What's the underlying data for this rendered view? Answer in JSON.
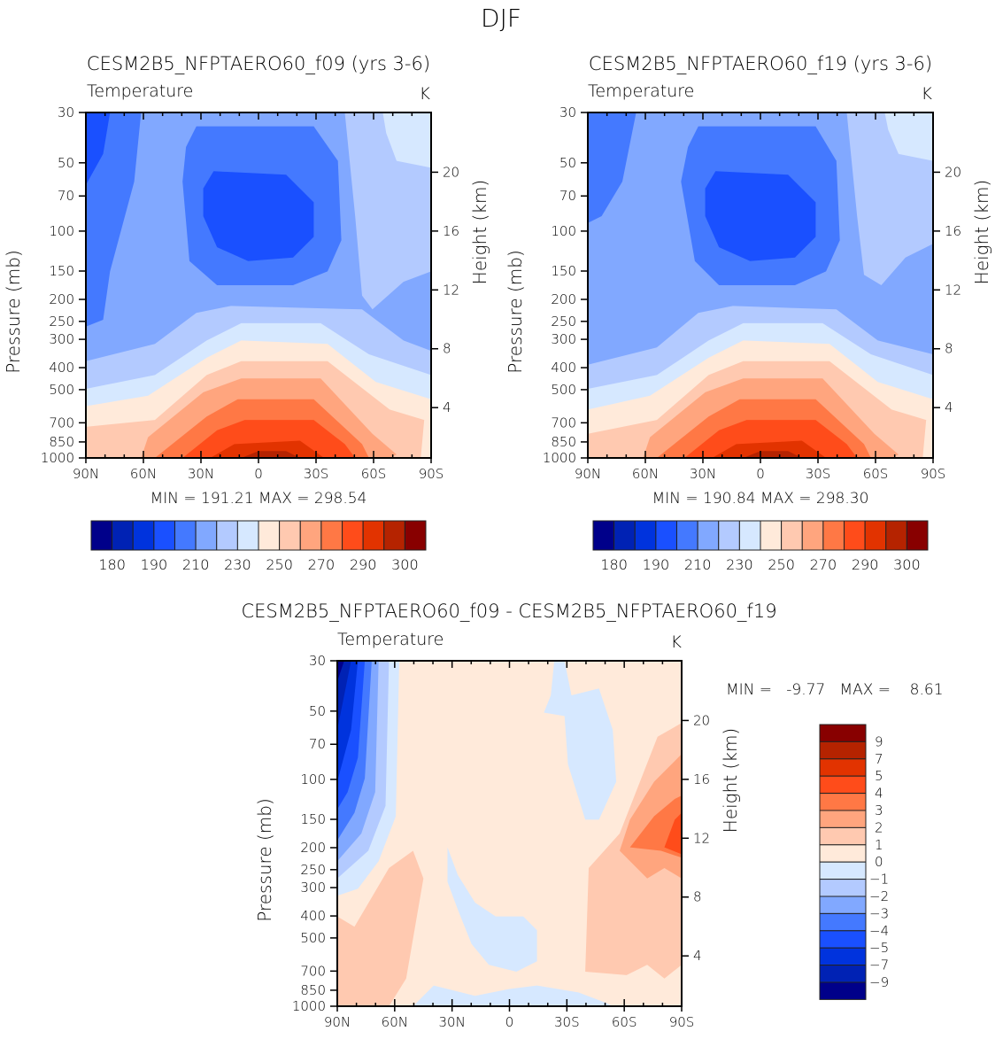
{
  "page_title": "DJF",
  "chart_data": [
    {
      "type": "heatmap",
      "id": "f09",
      "title": "CESM2B5_NFPTAERO60_f09 (yrs 3-6)",
      "variable": "Temperature",
      "units": "K",
      "ylabel": "Pressure (mb)",
      "ylabel_right": "Height (km)",
      "x_ticks": [
        "90N",
        "60N",
        "30N",
        "0",
        "30S",
        "60S",
        "90S"
      ],
      "y_ticks": [
        "30",
        "50",
        "70",
        "100",
        "150",
        "200",
        "250",
        "300",
        "400",
        "500",
        "700",
        "850",
        "1000"
      ],
      "y_right_ticks": [
        "20",
        "16",
        "12",
        "8",
        "4"
      ],
      "ylim_mb": [
        1000,
        30
      ],
      "xlim": [
        "90N",
        "90S"
      ],
      "stats": "MIN = 191.21   MAX = 298.54",
      "min": 191.21,
      "max": 298.54,
      "colorbar": {
        "orientation": "horizontal",
        "levels": [
          180,
          185,
          190,
          200,
          210,
          220,
          230,
          240,
          250,
          260,
          270,
          280,
          290,
          295,
          300
        ],
        "labels": [
          "180",
          "190",
          "210",
          "230",
          "250",
          "270",
          "290",
          "300"
        ],
        "colors": [
          "#00008a",
          "#0022b4",
          "#0033dd",
          "#1a50ff",
          "#4479ff",
          "#81a8ff",
          "#b3caff",
          "#d6e8ff",
          "#ffeada",
          "#ffc9b0",
          "#ffa57e",
          "#ff7845",
          "#ff4c1a",
          "#e23300",
          "#b52300",
          "#880000"
        ]
      }
    },
    {
      "type": "heatmap",
      "id": "f19",
      "title": "CESM2B5_NFPTAERO60_f19 (yrs 3-6)",
      "variable": "Temperature",
      "units": "K",
      "ylabel": "Pressure (mb)",
      "ylabel_right": "Height (km)",
      "x_ticks": [
        "90N",
        "60N",
        "30N",
        "0",
        "30S",
        "60S",
        "90S"
      ],
      "y_ticks": [
        "30",
        "50",
        "70",
        "100",
        "150",
        "200",
        "250",
        "300",
        "400",
        "500",
        "700",
        "850",
        "1000"
      ],
      "y_right_ticks": [
        "20",
        "16",
        "12",
        "8",
        "4"
      ],
      "ylim_mb": [
        1000,
        30
      ],
      "xlim": [
        "90N",
        "90S"
      ],
      "stats": "MIN = 190.84   MAX = 298.30",
      "min": 190.84,
      "max": 298.3,
      "colorbar": {
        "orientation": "horizontal",
        "levels": [
          180,
          185,
          190,
          200,
          210,
          220,
          230,
          240,
          250,
          260,
          270,
          280,
          290,
          295,
          300
        ],
        "labels": [
          "180",
          "190",
          "210",
          "230",
          "250",
          "270",
          "290",
          "300"
        ],
        "colors": [
          "#00008a",
          "#0022b4",
          "#0033dd",
          "#1a50ff",
          "#4479ff",
          "#81a8ff",
          "#b3caff",
          "#d6e8ff",
          "#ffeada",
          "#ffc9b0",
          "#ffa57e",
          "#ff7845",
          "#ff4c1a",
          "#e23300",
          "#b52300",
          "#880000"
        ]
      }
    },
    {
      "type": "heatmap",
      "id": "diff",
      "title": "CESM2B5_NFPTAERO60_f09 - CESM2B5_NFPTAERO60_f19",
      "variable": "Temperature",
      "units": "K",
      "ylabel": "Pressure (mb)",
      "ylabel_right": "Height (km)",
      "x_ticks": [
        "90N",
        "60N",
        "30N",
        "0",
        "30S",
        "60S",
        "90S"
      ],
      "y_ticks": [
        "30",
        "50",
        "70",
        "100",
        "150",
        "200",
        "250",
        "300",
        "400",
        "500",
        "700",
        "850",
        "1000"
      ],
      "y_right_ticks": [
        "20",
        "16",
        "12",
        "8",
        "4"
      ],
      "ylim_mb": [
        1000,
        30
      ],
      "xlim": [
        "90N",
        "90S"
      ],
      "stats": "MIN =   -9.77   MAX =    8.61",
      "min": -9.77,
      "max": 8.61,
      "colorbar": {
        "orientation": "vertical",
        "levels": [
          -9,
          -7,
          -5,
          -4,
          -3,
          -2,
          -1,
          0,
          1,
          2,
          3,
          4,
          5,
          7,
          9
        ],
        "labels": [
          "9",
          "7",
          "5",
          "4",
          "3",
          "2",
          "1",
          "0",
          "−1",
          "−2",
          "−3",
          "−4",
          "−5",
          "−7",
          "−9"
        ],
        "colors": [
          "#00008a",
          "#0022b4",
          "#0033dd",
          "#1a50ff",
          "#4479ff",
          "#81a8ff",
          "#b3caff",
          "#d6e8ff",
          "#ffeada",
          "#ffc9b0",
          "#ffa57e",
          "#ff7845",
          "#ff4c1a",
          "#e23300",
          "#b52300",
          "#880000"
        ]
      }
    }
  ]
}
